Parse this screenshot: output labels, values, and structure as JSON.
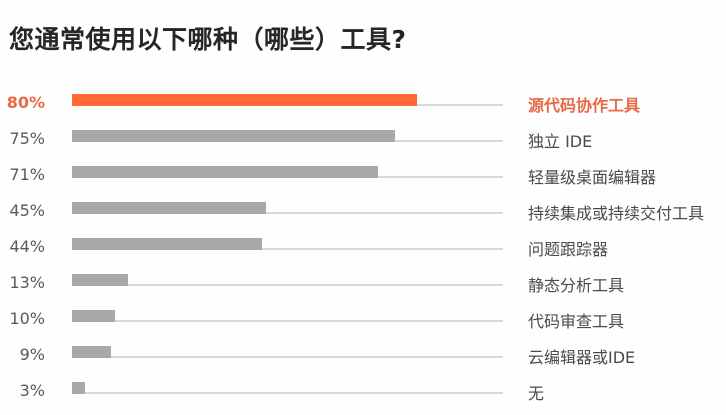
{
  "title": "您通常使用以下哪种（哪些）工具?",
  "colors": {
    "highlight": "#ff6a33",
    "highlight_text": "#e86a45",
    "bar": "#a9a9a9",
    "track": "#d9d9d9"
  },
  "rows": [
    {
      "pct": "80%",
      "label": "源代码协作工具"
    },
    {
      "pct": "75%",
      "label": "独立 IDE"
    },
    {
      "pct": "71%",
      "label": "轻量级桌面编辑器"
    },
    {
      "pct": "45%",
      "label": "持续集成或持续交付工具"
    },
    {
      "pct": "44%",
      "label": "问题跟踪器"
    },
    {
      "pct": "13%",
      "label": "静态分析工具"
    },
    {
      "pct": "10%",
      "label": "代码审查工具"
    },
    {
      "pct": "9%",
      "label": "云编辑器或IDE"
    },
    {
      "pct": "3%",
      "label": "无"
    }
  ],
  "chart_data": {
    "type": "bar",
    "orientation": "horizontal",
    "title": "您通常使用以下哪种（哪些）工具?",
    "categories": [
      "源代码协作工具",
      "独立 IDE",
      "轻量级桌面编辑器",
      "持续集成或持续交付工具",
      "问题跟踪器",
      "静态分析工具",
      "代码审查工具",
      "云编辑器或IDE",
      "无"
    ],
    "values": [
      80,
      75,
      71,
      45,
      44,
      13,
      10,
      9,
      3
    ],
    "value_labels": [
      "80%",
      "75%",
      "71%",
      "45%",
      "44%",
      "13%",
      "10%",
      "9%",
      "3%"
    ],
    "highlighted_index": 0,
    "xlabel": "",
    "ylabel": "",
    "xlim": [
      0,
      100
    ],
    "grid": false,
    "legend": "none",
    "unit": "%"
  }
}
